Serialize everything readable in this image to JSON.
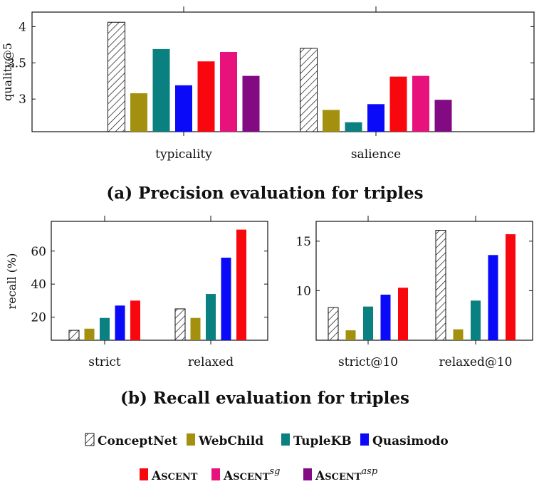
{
  "chart_data": [
    {
      "type": "bar",
      "caption": "(a) Precision evaluation for triples",
      "ylabel": "quality@5",
      "xlabel": "",
      "categories": [
        "typicality",
        "salience"
      ],
      "yticks": [
        "3",
        "3.5",
        "4"
      ],
      "ylim": [
        2.55,
        4.2
      ],
      "series": [
        {
          "name": "ConceptNet",
          "values": [
            4.06,
            3.7
          ]
        },
        {
          "name": "WebChild",
          "values": [
            3.08,
            2.85
          ]
        },
        {
          "name": "TupleKB",
          "values": [
            3.69,
            2.68
          ]
        },
        {
          "name": "Quasimodo",
          "values": [
            3.19,
            2.93
          ]
        },
        {
          "name": "Ascent",
          "values": [
            3.52,
            3.31
          ]
        },
        {
          "name": "Ascent^sg",
          "values": [
            3.65,
            3.32
          ]
        },
        {
          "name": "Ascent^asp",
          "values": [
            3.32,
            2.99
          ]
        }
      ]
    },
    {
      "type": "bar",
      "caption": "(b) Recall evaluation for triples",
      "ylabel": "recall (%)",
      "xlabel": "",
      "categories": [
        "strict",
        "relaxed"
      ],
      "yticks": [
        "20",
        "40",
        "60"
      ],
      "ylim": [
        6,
        78
      ],
      "series": [
        {
          "name": "ConceptNet",
          "values": [
            12,
            25
          ]
        },
        {
          "name": "WebChild",
          "values": [
            13,
            19.5
          ]
        },
        {
          "name": "TupleKB",
          "values": [
            19.5,
            34
          ]
        },
        {
          "name": "Quasimodo",
          "values": [
            27,
            56
          ]
        },
        {
          "name": "Ascent",
          "values": [
            30,
            73
          ]
        }
      ]
    },
    {
      "type": "bar",
      "ylabel": "",
      "xlabel": "",
      "categories": [
        "strict@10",
        "relaxed@10"
      ],
      "yticks": [
        "10",
        "15"
      ],
      "ylim": [
        5,
        17
      ],
      "series": [
        {
          "name": "ConceptNet",
          "values": [
            8.3,
            16.1
          ]
        },
        {
          "name": "WebChild",
          "values": [
            6.0,
            6.1
          ]
        },
        {
          "name": "TupleKB",
          "values": [
            8.4,
            9.0
          ]
        },
        {
          "name": "Quasimodo",
          "values": [
            9.6,
            13.6
          ]
        },
        {
          "name": "Ascent",
          "values": [
            10.3,
            15.7
          ]
        }
      ]
    }
  ],
  "legend": {
    "row1": [
      {
        "key": "ConceptNet",
        "label": "ConceptNet"
      },
      {
        "key": "WebChild",
        "label": "WebChild"
      },
      {
        "key": "TupleKB",
        "label": "TupleKB"
      },
      {
        "key": "Quasimodo",
        "label": "Quasimodo"
      }
    ],
    "row2": [
      {
        "key": "Ascent",
        "label": "Ascent",
        "sup": ""
      },
      {
        "key": "Ascent^sg",
        "label": "Ascent",
        "sup": "sg"
      },
      {
        "key": "Ascent^asp",
        "label": "Ascent",
        "sup": "asp"
      }
    ]
  },
  "colors": {
    "ConceptNet": "hatch",
    "WebChild": "#a3900f",
    "TupleKB": "#0a8080",
    "Quasimodo": "#0a0af8",
    "Ascent": "#f8080e",
    "Ascent^sg": "#e8127d",
    "Ascent^asp": "#820a82"
  }
}
